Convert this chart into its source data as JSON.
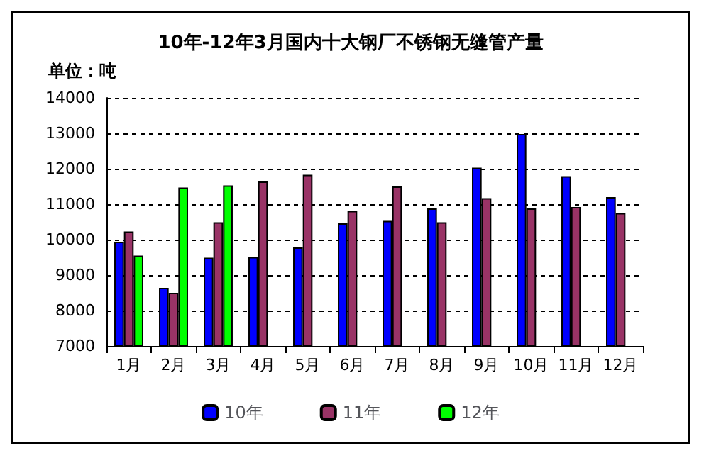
{
  "chart_data": {
    "type": "bar",
    "title": "10年-12年3月国内十大钢厂不锈钢无缝管产量",
    "subtitle": "单位：吨",
    "categories": [
      "1月",
      "2月",
      "3月",
      "4月",
      "5月",
      "6月",
      "7月",
      "8月",
      "9月",
      "10月",
      "11月",
      "12月"
    ],
    "series": [
      {
        "name": "10年",
        "color": "#0000ff",
        "values": [
          9940,
          8640,
          9490,
          9510,
          9780,
          10460,
          10530,
          10880,
          12030,
          12980,
          11790,
          11200
        ]
      },
      {
        "name": "11年",
        "color": "#993366",
        "values": [
          10230,
          8500,
          10490,
          11640,
          11830,
          10810,
          11500,
          10490,
          11170,
          10880,
          10920,
          10750
        ]
      },
      {
        "name": "12年",
        "color": "#00ff00",
        "values": [
          9550,
          11470,
          11530,
          null,
          null,
          null,
          null,
          null,
          null,
          null,
          null,
          null
        ]
      }
    ],
    "ylim": [
      7000,
      14000
    ],
    "yticks": [
      7000,
      8000,
      9000,
      10000,
      11000,
      12000,
      13000,
      14000
    ],
    "grid": "y",
    "legend": "bottom"
  }
}
